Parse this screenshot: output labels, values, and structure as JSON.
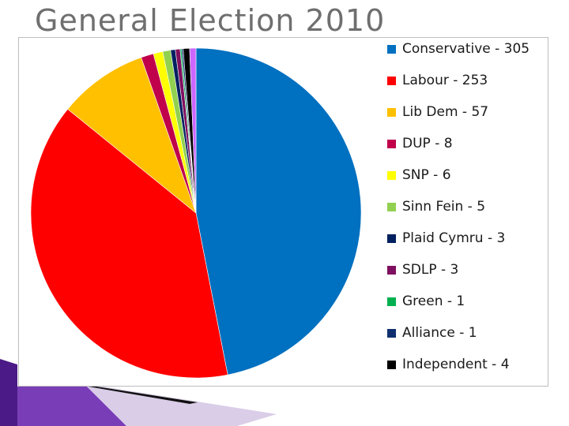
{
  "title": "General Election 2010",
  "chart_data": {
    "type": "pie",
    "title": "",
    "legend_position": "right",
    "slices": [
      {
        "label": "Conservative - 305",
        "value": 305,
        "color": "#0070c0"
      },
      {
        "label": "Labour - 253",
        "value": 253,
        "color": "#ff0000"
      },
      {
        "label": "Lib Dem - 57",
        "value": 57,
        "color": "#ffc000"
      },
      {
        "label": "DUP - 8",
        "value": 8,
        "color": "#c0004a"
      },
      {
        "label": "SNP - 6",
        "value": 6,
        "color": "#ffff00"
      },
      {
        "label": "Sinn Fein - 5",
        "value": 5,
        "color": "#92d050"
      },
      {
        "label": "Plaid Cymru - 3",
        "value": 3,
        "color": "#002060"
      },
      {
        "label": "SDLP - 3",
        "value": 3,
        "color": "#7f0f5f"
      },
      {
        "label": "Green - 1",
        "value": 1,
        "color": "#00b050"
      },
      {
        "label": "Alliance - 1",
        "value": 1,
        "color": "#0f2f6f"
      },
      {
        "label": "Independent - 4",
        "value": 4,
        "color": "#000000"
      },
      {
        "label": "",
        "value": 4,
        "color": "#cc66ff"
      }
    ]
  }
}
